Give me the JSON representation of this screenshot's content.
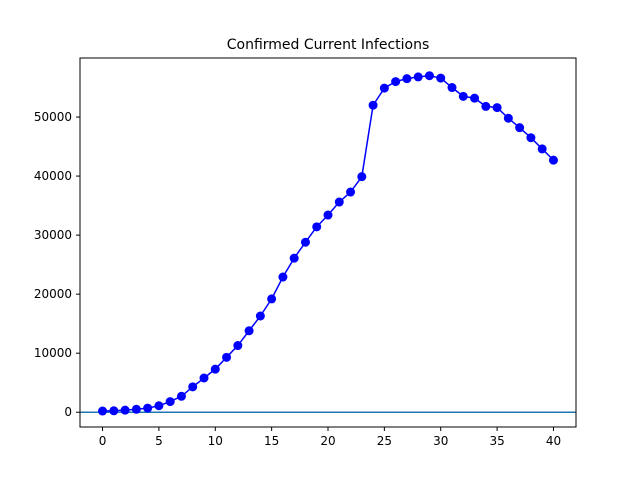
{
  "chart_data": {
    "type": "line",
    "title": "Confirmed Current Infections",
    "xlabel": "",
    "ylabel": "",
    "xlim": [
      -2,
      42
    ],
    "ylim": [
      -2500,
      60000
    ],
    "x_ticks": [
      0,
      5,
      10,
      15,
      20,
      25,
      30,
      35,
      40
    ],
    "y_ticks": [
      0,
      10000,
      20000,
      30000,
      40000,
      50000
    ],
    "grid": false,
    "legend": "none",
    "baseline": 0,
    "series": [
      {
        "color": "#0000ff",
        "marker": "circle",
        "x": [
          0,
          1,
          2,
          3,
          4,
          5,
          6,
          7,
          8,
          9,
          10,
          11,
          12,
          13,
          14,
          15,
          16,
          17,
          18,
          19,
          20,
          21,
          22,
          23,
          24,
          25,
          26,
          27,
          28,
          29,
          30,
          31,
          32,
          33,
          34,
          35,
          36,
          37,
          38,
          39,
          40
        ],
        "y": [
          200,
          250,
          350,
          500,
          700,
          1100,
          1800,
          2700,
          4300,
          5800,
          7300,
          9300,
          11300,
          13800,
          16300,
          19200,
          22900,
          26100,
          28800,
          31400,
          33400,
          35600,
          37300,
          39900,
          52000,
          54900,
          56000,
          56500,
          56800,
          57000,
          56600,
          55000,
          53500,
          53200,
          51800,
          51600,
          49800,
          48200,
          46500,
          44600,
          42700
        ]
      }
    ],
    "baseline_color": "#1f77b4"
  }
}
